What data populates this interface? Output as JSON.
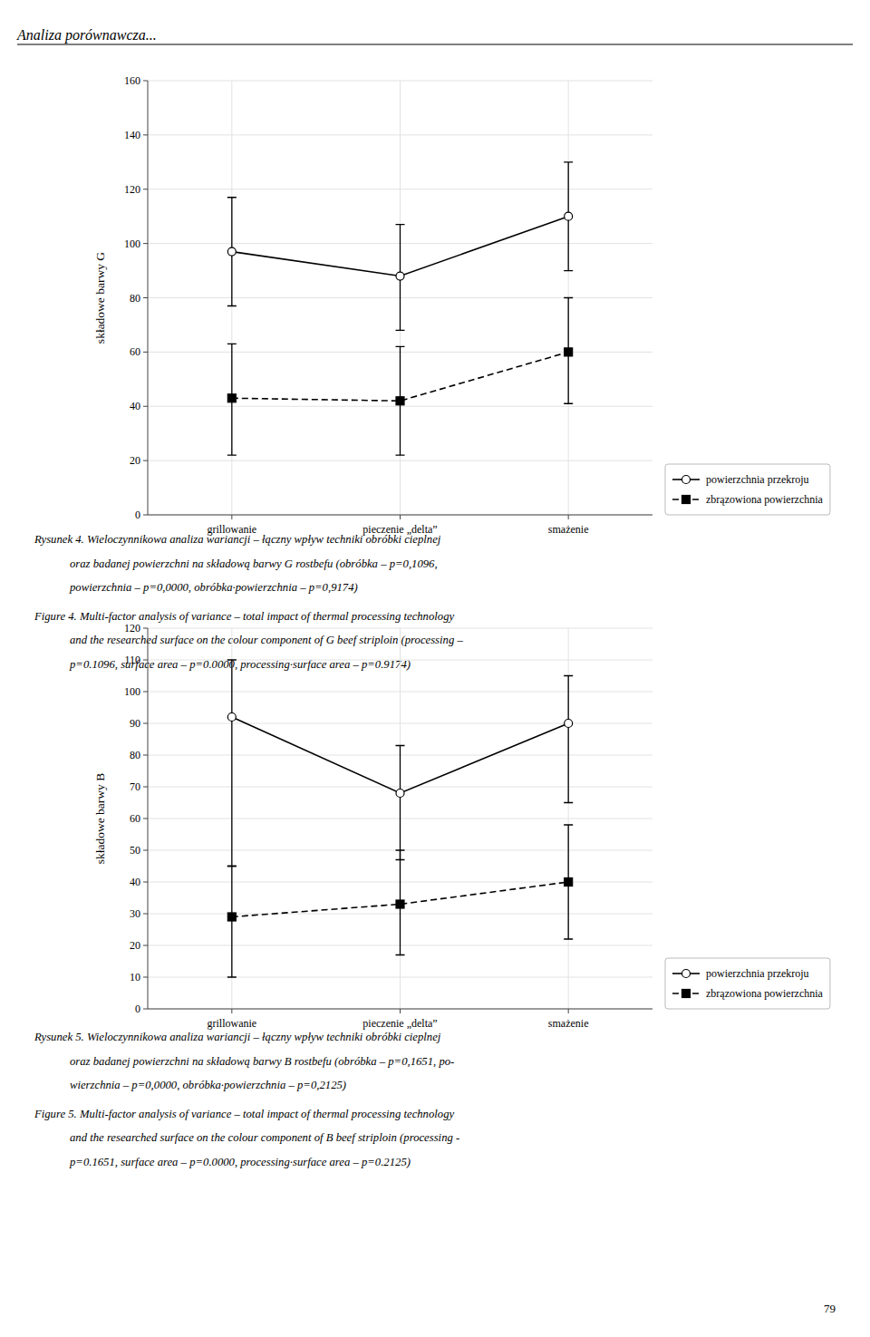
{
  "header": "Analiza porównawcza...",
  "page_number": "79",
  "chart_data": [
    {
      "type": "line",
      "ylabel": "składowe barwy G",
      "categories": [
        "grillowanie",
        "pieczenie „delta”",
        "smażenie"
      ],
      "ylim": [
        0,
        160
      ],
      "yticks": [
        0,
        20,
        40,
        60,
        80,
        100,
        120,
        140,
        160
      ],
      "grid": true,
      "legend": "right",
      "series": [
        {
          "name": "powierzchnia przekroju",
          "color": "#000000",
          "marker": "open-circle",
          "line_style": "solid",
          "values": [
            97,
            88,
            110
          ],
          "error_low": [
            20,
            20,
            20
          ],
          "error_high": [
            20,
            19,
            20
          ]
        },
        {
          "name": "zbrązowiona powierzchnia",
          "color": "#000000",
          "marker": "square",
          "line_style": "dashed",
          "values": [
            43,
            42,
            60
          ],
          "error_low": [
            21,
            20,
            19
          ],
          "error_high": [
            20,
            20,
            20
          ]
        }
      ],
      "annotations": [
        "Rysunek 4. Wieloczynnikowa analiza wariancji – łączny wpływ techniki obróbki cieplnej",
        "oraz badanej powierzchni na składową barwy G rostbefu (obróbka – p=0,1096,",
        "powierzchnia – p=0,0000, obróbka·powierzchnia – p=0,9174)",
        "Figure 4. Multi-factor analysis of variance – total impact of thermal processing technology",
        "and the researched surface on the colour component of G beef striploin (processing –",
        "p=0.1096, surface area – p=0.0000, processing·surface area – p=0.9174)"
      ]
    },
    {
      "type": "line",
      "ylabel": "składowe barwy B",
      "categories": [
        "grillowanie",
        "pieczenie „delta”",
        "smażenie"
      ],
      "ylim": [
        0,
        120
      ],
      "yticks": [
        0,
        10,
        20,
        30,
        40,
        50,
        60,
        70,
        80,
        90,
        100,
        110,
        120
      ],
      "grid": true,
      "legend": "right",
      "series": [
        {
          "name": "powierzchnia przekroju",
          "color": "#000000",
          "marker": "open-circle",
          "line_style": "solid",
          "values": [
            92,
            68,
            90
          ],
          "error_low": [
            47,
            21,
            25
          ],
          "error_high": [
            18,
            15,
            15
          ]
        },
        {
          "name": "zbrązowiona powierzchnia",
          "color": "#000000",
          "marker": "square",
          "line_style": "dashed",
          "values": [
            29,
            33,
            40
          ],
          "error_low": [
            19,
            16,
            18
          ],
          "error_high": [
            16,
            17,
            18
          ]
        }
      ],
      "annotations": [
        "Rysunek 5. Wieloczynnikowa analiza wariancji – łączny wpływ techniki obróbki cieplnej",
        "oraz badanej powierzchni na składową barwy B rostbefu (obróbka – p=0,1651, po-",
        "wierzchnia – p=0,0000, obróbka·powierzchnia – p=0,2125)",
        "Figure 5. Multi-factor analysis of variance – total impact of thermal processing technology",
        "and the researched surface on the colour component of B beef striploin (processing  -",
        "p=0.1651, surface area – p=0.0000, processing·surface area – p=0.2125)"
      ]
    }
  ]
}
